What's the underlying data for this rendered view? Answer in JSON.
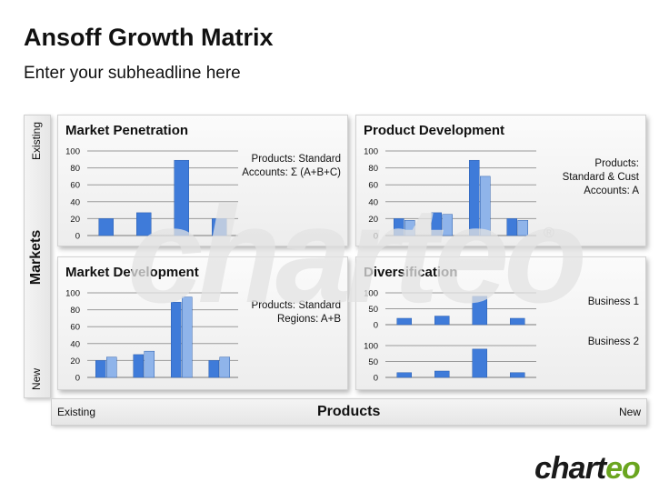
{
  "header": {
    "title": "Ansoff Growth Matrix",
    "subtitle": "Enter your subheadline here"
  },
  "axes": {
    "markets_label": "Markets",
    "markets_existing": "Existing",
    "markets_new": "New",
    "products_label": "Products",
    "products_existing": "Existing",
    "products_new": "New"
  },
  "watermark": {
    "text": "charteo",
    "mark": "®"
  },
  "logo": {
    "main": "chart",
    "accent": "eo"
  },
  "colors": {
    "bar_dark": "#3f7bd9",
    "bar_light": "#8fb4ea",
    "logo_green": "#6aa51f"
  },
  "panels": {
    "penetration": {
      "title": "Market Penetration",
      "note": [
        "Products: Standard",
        "Accounts: Σ (A+B+C)"
      ]
    },
    "development": {
      "title": "Product Development",
      "note": [
        "Products:",
        "Standard & Cust",
        "Accounts: A"
      ]
    },
    "market_dev": {
      "title": "Market Development",
      "note": [
        "Products: Standard",
        "Regions: A+B"
      ]
    },
    "diversification": {
      "title": "Diversification",
      "note1": "Business 1",
      "note2": "Business 2"
    }
  },
  "chart_data": [
    {
      "id": "penetration",
      "type": "bar",
      "title": "Market Penetration",
      "ylim": [
        0,
        100
      ],
      "yticks": [
        0,
        20,
        40,
        60,
        80,
        100
      ],
      "grid": true,
      "series": [
        {
          "values": [
            20,
            27,
            89,
            20
          ]
        }
      ]
    },
    {
      "id": "development",
      "type": "bar",
      "title": "Product Development",
      "ylim": [
        0,
        100
      ],
      "yticks": [
        0,
        20,
        40,
        60,
        80,
        100
      ],
      "grid": true,
      "series": [
        {
          "values": [
            20,
            27,
            89,
            20
          ]
        },
        {
          "values": [
            18,
            25,
            70,
            18
          ]
        }
      ]
    },
    {
      "id": "market_dev",
      "type": "bar",
      "title": "Market Development",
      "ylim": [
        0,
        100
      ],
      "yticks": [
        0,
        20,
        40,
        60,
        80,
        100
      ],
      "grid": true,
      "series": [
        {
          "values": [
            20,
            27,
            89,
            20
          ]
        },
        {
          "values": [
            24,
            31,
            95,
            24
          ]
        }
      ]
    },
    {
      "id": "div_top",
      "type": "bar",
      "title": "Diversification",
      "ylim": [
        0,
        100
      ],
      "yticks": [
        0,
        50,
        100
      ],
      "grid": true,
      "series": [
        {
          "values": [
            20,
            27,
            89,
            20
          ]
        }
      ]
    },
    {
      "id": "div_bottom",
      "type": "bar",
      "title": "",
      "ylim": [
        0,
        100
      ],
      "yticks": [
        0,
        50,
        100
      ],
      "grid": true,
      "series": [
        {
          "values": [
            15,
            20,
            89,
            15
          ]
        }
      ]
    }
  ]
}
